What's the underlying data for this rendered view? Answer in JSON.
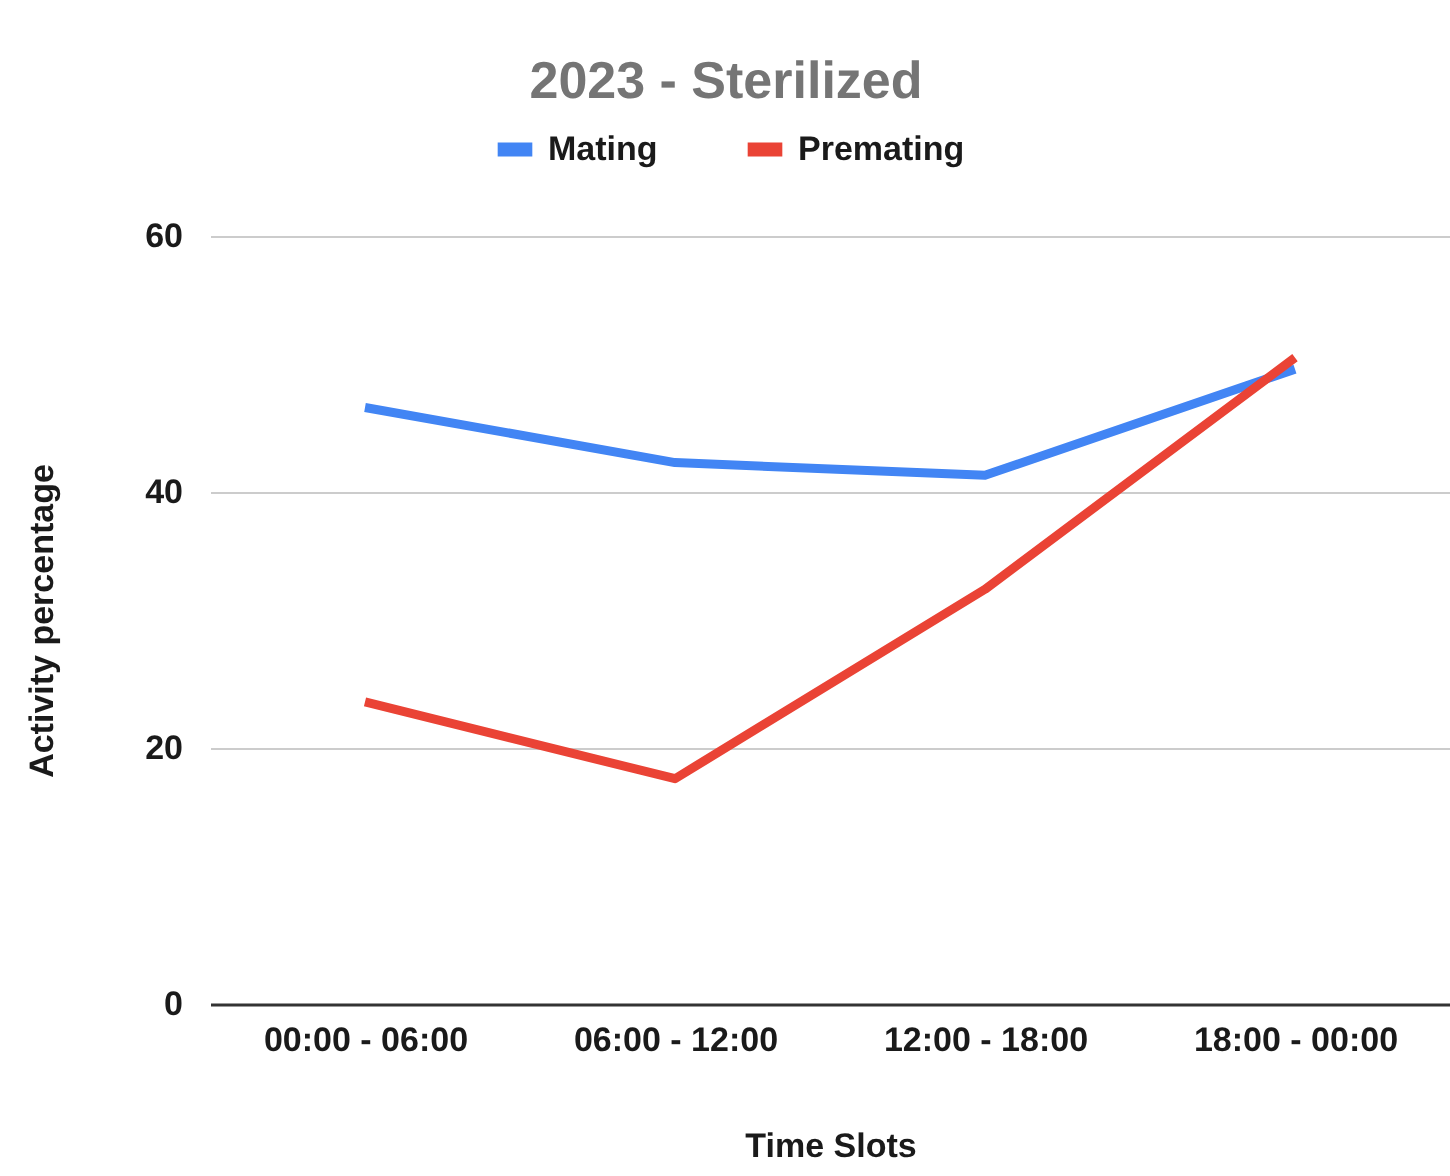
{
  "chart_data": {
    "type": "line",
    "title": "2023 - Sterilized",
    "xlabel": "Time Slots",
    "ylabel": "Activity percentage",
    "categories": [
      "00:00 - 06:00",
      "06:00 - 12:00",
      "12:00 - 18:00",
      "18:00 - 00:00"
    ],
    "series": [
      {
        "name": "Mating",
        "color": "#4285f4",
        "values": [
          46.6,
          42.3,
          41.3,
          49.6
        ]
      },
      {
        "name": "Premating",
        "color": "#ea4335",
        "values": [
          23.6,
          17.6,
          32.4,
          50.5
        ]
      }
    ],
    "ylim": [
      0,
      60
    ],
    "yticks": [
      0,
      20,
      40,
      60
    ],
    "grid": "y",
    "legend": "top",
    "line_style": "solid"
  }
}
